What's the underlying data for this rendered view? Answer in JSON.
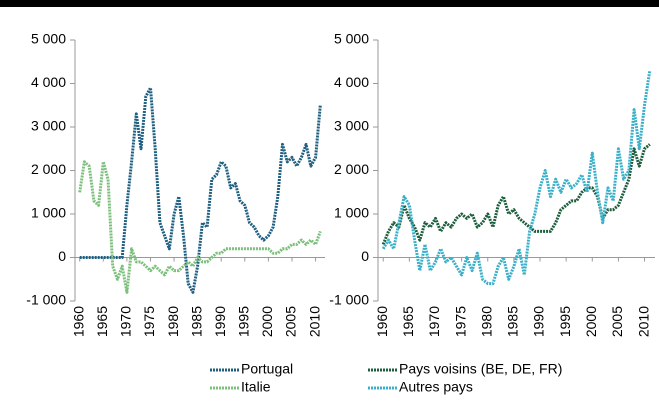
{
  "chart_data": [
    {
      "type": "line",
      "x": [
        1960,
        1961,
        1962,
        1963,
        1964,
        1965,
        1966,
        1967,
        1968,
        1969,
        1970,
        1971,
        1972,
        1973,
        1974,
        1975,
        1976,
        1977,
        1978,
        1979,
        1980,
        1981,
        1982,
        1983,
        1984,
        1985,
        1986,
        1987,
        1988,
        1989,
        1990,
        1991,
        1992,
        1993,
        1994,
        1995,
        1996,
        1997,
        1998,
        1999,
        2000,
        2001,
        2002,
        2003,
        2004,
        2005,
        2006,
        2007,
        2008,
        2009,
        2010,
        2011
      ],
      "series": [
        {
          "name": "Portugal",
          "color": "#1f5f80",
          "values": [
            0,
            0,
            0,
            0,
            0,
            0,
            0,
            0,
            0,
            0,
            1200,
            2200,
            3300,
            2500,
            3700,
            3900,
            2500,
            800,
            500,
            200,
            1000,
            1400,
            500,
            -600,
            -800,
            -200,
            800,
            700,
            1800,
            1900,
            2200,
            2100,
            1600,
            1700,
            1300,
            1200,
            800,
            700,
            500,
            400,
            500,
            700,
            1400,
            2600,
            2200,
            2300,
            2100,
            2300,
            2600,
            2100,
            2300,
            3500
          ]
        },
        {
          "name": "Italie",
          "color": "#7dbf7d",
          "values": [
            1500,
            2200,
            2100,
            1300,
            1200,
            2200,
            1800,
            -200,
            -500,
            -200,
            -800,
            200,
            -100,
            -100,
            -200,
            -300,
            -200,
            -300,
            -400,
            -200,
            -300,
            -300,
            -200,
            -100,
            -200,
            0,
            -100,
            -100,
            0,
            100,
            100,
            200,
            200,
            200,
            200,
            200,
            200,
            200,
            200,
            200,
            200,
            100,
            100,
            200,
            200,
            300,
            300,
            400,
            300,
            400,
            300,
            600
          ]
        }
      ],
      "xlim": [
        1959,
        2012
      ],
      "xticks": [
        1960,
        1965,
        1970,
        1975,
        1980,
        1985,
        1990,
        1995,
        2000,
        2005,
        2010
      ],
      "ylim": [
        -1000,
        5000
      ],
      "yticks": [
        {
          "value": -1000,
          "label": "-1 000"
        },
        0,
        {
          "value": 1000,
          "label": "1 000"
        },
        {
          "value": 2000,
          "label": "2 000"
        },
        {
          "value": 3000,
          "label": "3 000"
        },
        {
          "value": 4000,
          "label": "4 000"
        },
        {
          "value": 5000,
          "label": "5 000"
        }
      ]
    },
    {
      "type": "line",
      "x": [
        1960,
        1961,
        1962,
        1963,
        1964,
        1965,
        1966,
        1967,
        1968,
        1969,
        1970,
        1971,
        1972,
        1973,
        1974,
        1975,
        1976,
        1977,
        1978,
        1979,
        1980,
        1981,
        1982,
        1983,
        1984,
        1985,
        1986,
        1987,
        1988,
        1989,
        1990,
        1991,
        1992,
        1993,
        1994,
        1995,
        1996,
        1997,
        1998,
        1999,
        2000,
        2001,
        2002,
        2003,
        2004,
        2005,
        2006,
        2007,
        2008,
        2009,
        2010,
        2011
      ],
      "series": [
        {
          "name": "Pays voisins (BE, DE, FR)",
          "color": "#1e5e3e",
          "values": [
            300,
            600,
            800,
            700,
            1200,
            900,
            700,
            400,
            800,
            700,
            900,
            600,
            800,
            700,
            900,
            1000,
            900,
            1000,
            700,
            800,
            1000,
            700,
            1200,
            1400,
            1000,
            1100,
            900,
            800,
            700,
            600,
            600,
            600,
            600,
            800,
            1100,
            1200,
            1300,
            1300,
            1500,
            1600,
            1600,
            1400,
            900,
            1100,
            1100,
            1200,
            1500,
            1800,
            2500,
            2100,
            2500,
            2600
          ]
        },
        {
          "name": "Autres pays",
          "color": "#3ab0c8",
          "values": [
            200,
            400,
            200,
            800,
            1400,
            1200,
            400,
            -300,
            300,
            -300,
            -100,
            200,
            -100,
            0,
            -200,
            -400,
            0,
            -300,
            100,
            -500,
            -600,
            -600,
            -200,
            0,
            -500,
            -200,
            200,
            -400,
            600,
            1000,
            1600,
            2000,
            1400,
            1800,
            1500,
            1800,
            1600,
            1700,
            1900,
            1500,
            2400,
            1500,
            800,
            1600,
            1300,
            2500,
            1800,
            2000,
            3400,
            2500,
            3500,
            4300
          ]
        }
      ],
      "xlim": [
        1959,
        2012
      ],
      "xticks": [
        1960,
        1965,
        1970,
        1975,
        1980,
        1985,
        1990,
        1995,
        2000,
        2005,
        2010
      ],
      "ylim": [
        -1000,
        5000
      ],
      "yticks": [
        {
          "value": -1000,
          "label": "-1 000"
        },
        0,
        {
          "value": 1000,
          "label": "1 000"
        },
        {
          "value": 2000,
          "label": "2 000"
        },
        {
          "value": 3000,
          "label": "3 000"
        },
        {
          "value": 4000,
          "label": "4 000"
        },
        {
          "value": 5000,
          "label": "5 000"
        }
      ]
    }
  ]
}
